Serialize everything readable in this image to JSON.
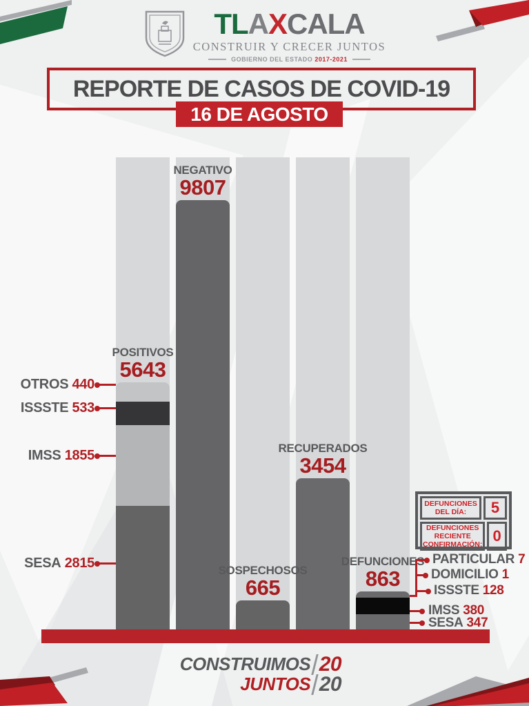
{
  "header": {
    "wordmark_tl": "TL",
    "wordmark_a": "A",
    "wordmark_x": "X",
    "wordmark_cala": "CALA",
    "subtitle": "CONSTRUIR Y CRECER JUNTOS",
    "gov_prefix": "GOBIERNO DEL ESTADO",
    "gov_years": "2017-2021",
    "logo_icon": "tlaxcala-coat-of-arms"
  },
  "title": {
    "main": "REPORTE DE CASOS DE COVID-19",
    "date": "16 DE AGOSTO"
  },
  "chart_data": {
    "type": "bar",
    "title": "REPORTE DE CASOS DE COVID-19 — 16 DE AGOSTO",
    "categories": [
      "POSITIVOS",
      "NEGATIVO",
      "SOSPECHOSOS",
      "RECUPERADOS",
      "DEFUNCIONES"
    ],
    "values": [
      5643,
      9807,
      665,
      3454,
      863
    ],
    "ylim": [
      0,
      9807
    ],
    "grid": false,
    "legend": "none",
    "track_color": "#d7d8d9",
    "baseline_color": "#b8232a",
    "bars": [
      {
        "label": "POSITIVOS",
        "value": 5643,
        "segments": [
          {
            "name": "OTROS",
            "value": 440,
            "color": "#c3c4c5"
          },
          {
            "name": "ISSSTE",
            "value": 533,
            "color": "#353537"
          },
          {
            "name": "IMSS",
            "value": 1855,
            "color": "#b4b5b6"
          },
          {
            "name": "SESA",
            "value": 2815,
            "color": "#646465"
          }
        ]
      },
      {
        "label": "NEGATIVO",
        "value": 9807,
        "color": "#656567"
      },
      {
        "label": "SOSPECHOSOS",
        "value": 665,
        "color": "#646465"
      },
      {
        "label": "RECUPERADOS",
        "value": 3454,
        "color": "#6a6a6c"
      },
      {
        "label": "DEFUNCIONES",
        "value": 863,
        "segments": [
          {
            "name": "PARTICULAR-DOMICILIO-ISSSTE",
            "value": 136,
            "color": "#6a6a6c"
          },
          {
            "name": "IMSS",
            "value": 380,
            "color": "#0a0a0a"
          },
          {
            "name": "SESA",
            "value": 347,
            "color": "#6a6a6c"
          }
        ]
      }
    ]
  },
  "annotations": {
    "positivos": [
      {
        "label": "OTROS",
        "value": "440"
      },
      {
        "label": "ISSSTE",
        "value": "533"
      },
      {
        "label": "IMSS",
        "value": "1855"
      },
      {
        "label": "SESA",
        "value": "2815"
      }
    ],
    "defunciones": [
      {
        "label": "PARTICULAR",
        "value": "7"
      },
      {
        "label": "DOMICILIO",
        "value": "1"
      },
      {
        "label": "ISSSTE",
        "value": "128"
      },
      {
        "label": "IMSS",
        "value": "380"
      },
      {
        "label": "SESA",
        "value": "347"
      }
    ]
  },
  "stats_box": {
    "rows": [
      {
        "label": "DEFUNCIONES DEL DÍA:",
        "value": "5"
      },
      {
        "label": "DEFUNCIONES RECIENTE CONFIRMACIÓN:",
        "value": "0"
      }
    ]
  },
  "footer": {
    "word1": "CONSTRUIMOS",
    "word2": "JUNTOS",
    "year_top": "20",
    "year_bottom": "20"
  }
}
